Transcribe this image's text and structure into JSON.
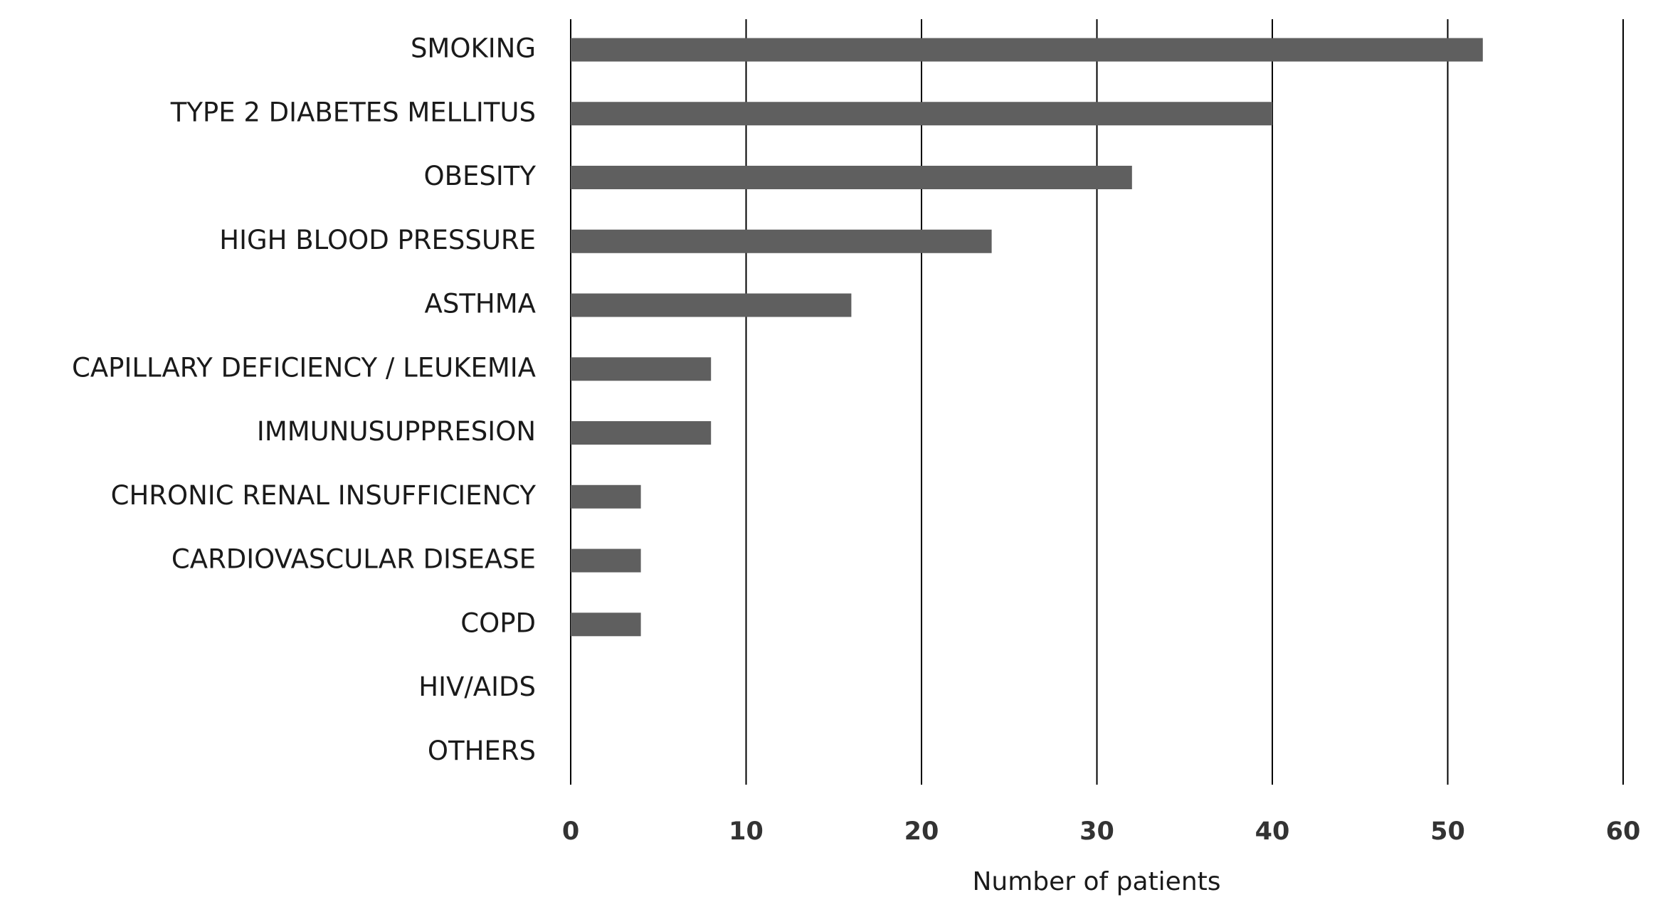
{
  "chart_data": {
    "type": "bar",
    "orientation": "horizontal",
    "x_label": "Number of patients",
    "categories": [
      "SMOKING",
      "TYPE 2 DIABETES MELLITUS",
      "OBESITY",
      "HIGH BLOOD PRESSURE",
      "ASTHMA",
      "CAPILLARY DEFICIENCY / LEUKEMIA",
      "IMMUNUSUPPRESION",
      "CHRONIC RENAL INSUFFICIENCY",
      "CARDIOVASCULAR DISEASE",
      "COPD",
      "HIV/AIDS",
      "OTHERS"
    ],
    "values": [
      52,
      40,
      32,
      24,
      16,
      8,
      8,
      4,
      4,
      4,
      0,
      0
    ],
    "color": "#5f5f5f",
    "xlim": [
      0,
      60
    ],
    "xticks": [
      0,
      10,
      20,
      30,
      40,
      50,
      60
    ],
    "grid": true
  }
}
